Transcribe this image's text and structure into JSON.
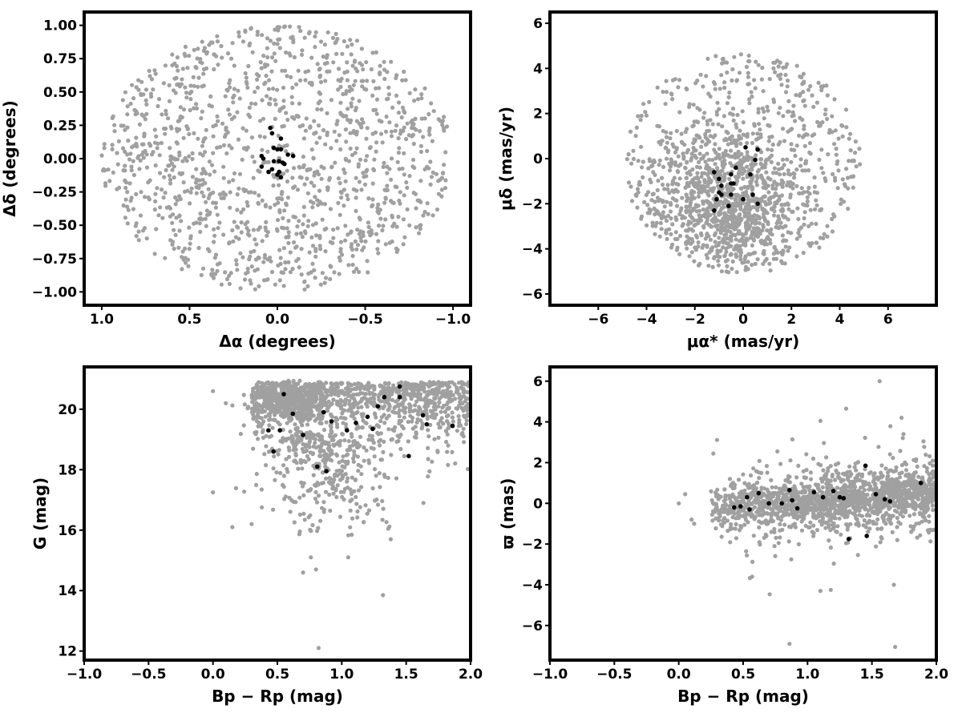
{
  "chart_data": [
    {
      "id": "sky",
      "type": "scatter",
      "title": "",
      "xlabel": "Δα (degrees)",
      "ylabel": "Δδ (degrees)",
      "xlim": [
        1.1,
        -1.1
      ],
      "ylim": [
        -1.1,
        1.1
      ],
      "xticks": [
        1.0,
        0.5,
        0.0,
        -0.5,
        -1.0
      ],
      "xtick_labels": [
        "1.0",
        "0.5",
        "0.0",
        "−0.5",
        "−1.0"
      ],
      "yticks": [
        -1.0,
        -0.75,
        -0.5,
        -0.25,
        0.0,
        0.25,
        0.5,
        0.75,
        1.0
      ],
      "ytick_labels": [
        "−1.00",
        "−0.75",
        "−0.50",
        "−0.25",
        "0.00",
        "0.25",
        "0.50",
        "0.75",
        "1.00"
      ],
      "grid": false,
      "background": {
        "description": "field stars uniformly filling a circle of radius 1 deg (approx. 1300 grey points)",
        "color": "#a0a0a0",
        "count": 1300,
        "shape": "disk",
        "center": [
          0.0,
          0.0
        ],
        "radius": 1.0
      },
      "members": [
        {
          "x": 0.04,
          "y": 0.23
        },
        {
          "x": 0.03,
          "y": 0.19
        },
        {
          "x": -0.02,
          "y": 0.15
        },
        {
          "x": 0.02,
          "y": 0.08
        },
        {
          "x": 0.0,
          "y": 0.07
        },
        {
          "x": -0.02,
          "y": 0.07
        },
        {
          "x": -0.06,
          "y": 0.03
        },
        {
          "x": -0.09,
          "y": 0.02
        },
        {
          "x": 0.09,
          "y": 0.02
        },
        {
          "x": 0.02,
          "y": -0.02
        },
        {
          "x": -0.01,
          "y": -0.02
        },
        {
          "x": -0.03,
          "y": -0.03
        },
        {
          "x": -0.04,
          "y": -0.04
        },
        {
          "x": 0.09,
          "y": -0.06
        },
        {
          "x": 0.03,
          "y": -0.08
        },
        {
          "x": -0.01,
          "y": -0.1
        },
        {
          "x": 0.0,
          "y": -0.12
        },
        {
          "x": -0.02,
          "y": -0.14
        },
        {
          "x": 0.05,
          "y": -0.1
        },
        {
          "x": 0.08,
          "y": 0.0
        }
      ],
      "members_color": "#000000"
    },
    {
      "id": "pm",
      "type": "scatter",
      "title": "",
      "xlabel": "μα* (mas/yr)",
      "ylabel": "μδ (mas/yr)",
      "xlim": [
        -8,
        8
      ],
      "ylim": [
        -6.5,
        6.5
      ],
      "xticks": [
        -6,
        -4,
        -2,
        0,
        2,
        4,
        6
      ],
      "xtick_labels": [
        "−6",
        "−4",
        "−2",
        "0",
        "2",
        "4",
        "6"
      ],
      "yticks": [
        -6,
        -4,
        -2,
        0,
        2,
        4,
        6
      ],
      "ytick_labels": [
        "−6",
        "−4",
        "−2",
        "0",
        "2",
        "4",
        "6"
      ],
      "grid": false,
      "background": {
        "description": "field stars within a circle of radius ~5 mas/yr centred near (0,-0.2), densest around (-0.5,-2)",
        "color": "#a0a0a0",
        "count": 1500,
        "shape": "disk",
        "center": [
          0.0,
          -0.2
        ],
        "radius": 4.9,
        "core_center": [
          -0.5,
          -2.0
        ],
        "core_sigma": [
          1.6,
          1.7
        ]
      },
      "members": [
        {
          "x": 0.1,
          "y": 0.5
        },
        {
          "x": 0.6,
          "y": 0.4
        },
        {
          "x": 0.5,
          "y": -0.05
        },
        {
          "x": -0.3,
          "y": -0.4
        },
        {
          "x": 0.3,
          "y": -0.7
        },
        {
          "x": -1.2,
          "y": -0.6
        },
        {
          "x": -0.5,
          "y": -0.7
        },
        {
          "x": -1.0,
          "y": -0.9
        },
        {
          "x": -0.5,
          "y": -1.1
        },
        {
          "x": -0.4,
          "y": -1.1
        },
        {
          "x": -0.9,
          "y": -1.2
        },
        {
          "x": -1.0,
          "y": -1.5
        },
        {
          "x": -0.9,
          "y": -1.6
        },
        {
          "x": -0.5,
          "y": -1.6
        },
        {
          "x": 0.4,
          "y": -1.6
        },
        {
          "x": -1.1,
          "y": -1.8
        },
        {
          "x": 0.0,
          "y": -1.8
        },
        {
          "x": -0.6,
          "y": -2.1
        },
        {
          "x": 0.6,
          "y": -2.0
        },
        {
          "x": -1.2,
          "y": -2.3
        }
      ],
      "members_color": "#000000"
    },
    {
      "id": "cmd",
      "type": "scatter",
      "title": "",
      "xlabel": "Bp − Rp (mag)",
      "ylabel": "G (mag)",
      "xlim": [
        -1.0,
        2.0
      ],
      "ylim": [
        11.7,
        21.4
      ],
      "xticks": [
        -1.0,
        -0.5,
        0.0,
        0.5,
        1.0,
        1.5,
        2.0
      ],
      "xtick_labels": [
        "−1.0",
        "−0.5",
        "0.0",
        "0.5",
        "1.0",
        "1.5",
        "2.0"
      ],
      "yticks": [
        12,
        14,
        16,
        18,
        20
      ],
      "ytick_labels": [
        "12",
        "14",
        "16",
        "18",
        "20"
      ],
      "grid": false,
      "background": {
        "description": "field-star colour-magnitude distribution, dense at G 19-21 and Bp-Rp 0.3-2.0, branch toward G~16 at Bp-Rp~0.9",
        "color": "#a0a0a0",
        "count": 1700,
        "outliers": [
          {
            "x": 0.0,
            "y": 17.25
          },
          {
            "x": 0.15,
            "y": 16.1
          },
          {
            "x": 0.3,
            "y": 16.2
          },
          {
            "x": 0.7,
            "y": 14.6
          },
          {
            "x": 0.8,
            "y": 14.7
          },
          {
            "x": 1.32,
            "y": 13.85
          },
          {
            "x": 0.82,
            "y": 12.1
          },
          {
            "x": 0.76,
            "y": 15.1
          },
          {
            "x": 1.05,
            "y": 15.1
          },
          {
            "x": 1.38,
            "y": 15.7
          },
          {
            "x": 0.0,
            "y": 20.6
          },
          {
            "x": 0.1,
            "y": 20.2
          }
        ]
      },
      "members": [
        {
          "x": 0.55,
          "y": 20.5
        },
        {
          "x": 1.33,
          "y": 20.4
        },
        {
          "x": 1.45,
          "y": 20.4
        },
        {
          "x": 1.45,
          "y": 20.75
        },
        {
          "x": 0.62,
          "y": 19.85
        },
        {
          "x": 0.86,
          "y": 19.9
        },
        {
          "x": 1.63,
          "y": 19.8
        },
        {
          "x": 1.28,
          "y": 20.1
        },
        {
          "x": 1.2,
          "y": 19.75
        },
        {
          "x": 0.92,
          "y": 19.6
        },
        {
          "x": 1.11,
          "y": 19.55
        },
        {
          "x": 1.66,
          "y": 19.5
        },
        {
          "x": 1.86,
          "y": 19.45
        },
        {
          "x": 1.24,
          "y": 19.35
        },
        {
          "x": 0.43,
          "y": 19.3
        },
        {
          "x": 0.52,
          "y": 19.3
        },
        {
          "x": 1.04,
          "y": 19.3
        },
        {
          "x": 0.7,
          "y": 19.15
        },
        {
          "x": 0.47,
          "y": 18.6
        },
        {
          "x": 1.52,
          "y": 18.45
        },
        {
          "x": 0.81,
          "y": 18.1
        },
        {
          "x": 0.88,
          "y": 17.95
        }
      ],
      "members_color": "#000000"
    },
    {
      "id": "parallax",
      "type": "scatter",
      "title": "",
      "xlabel": "Bp − Rp (mag)",
      "ylabel": "ϖ (mas)",
      "xlim": [
        -1.0,
        2.0
      ],
      "ylim": [
        -7.7,
        6.7
      ],
      "xticks": [
        -1.0,
        -0.5,
        0.0,
        0.5,
        1.0,
        1.5,
        2.0
      ],
      "xtick_labels": [
        "−1.0",
        "−0.5",
        "0.0",
        "0.5",
        "1.0",
        "1.5",
        "2.0"
      ],
      "yticks": [
        -6,
        -4,
        -2,
        0,
        2,
        4,
        6
      ],
      "ytick_labels": [
        "−6",
        "−4",
        "−2",
        "0",
        "2",
        "4",
        "6"
      ],
      "grid": false,
      "background": {
        "description": "field-star parallaxes clustered near 0 mas for Bp-Rp 0.3-2.0 with scatter of about 1-2 mas",
        "color": "#a0a0a0",
        "count": 1700,
        "outliers": [
          {
            "x": 0.0,
            "y": 0.0
          },
          {
            "x": 0.05,
            "y": 0.45
          },
          {
            "x": 0.1,
            "y": -0.8
          },
          {
            "x": 0.12,
            "y": -1.0
          },
          {
            "x": 0.86,
            "y": -6.9
          },
          {
            "x": 1.68,
            "y": -7.05
          },
          {
            "x": 1.56,
            "y": 6.0
          },
          {
            "x": 1.3,
            "y": 4.65
          },
          {
            "x": 1.1,
            "y": 4.05
          },
          {
            "x": 1.73,
            "y": 4.2
          },
          {
            "x": 1.67,
            "y": -4.0
          },
          {
            "x": 1.1,
            "y": -4.3
          },
          {
            "x": 1.18,
            "y": -4.25
          },
          {
            "x": 0.57,
            "y": -3.6
          }
        ]
      },
      "members": [
        {
          "x": 0.43,
          "y": -0.2
        },
        {
          "x": 0.48,
          "y": -0.15
        },
        {
          "x": 0.53,
          "y": 0.3
        },
        {
          "x": 0.55,
          "y": -0.3
        },
        {
          "x": 0.62,
          "y": 0.5
        },
        {
          "x": 0.7,
          "y": 0.0
        },
        {
          "x": 0.8,
          "y": 0.0
        },
        {
          "x": 0.86,
          "y": 0.65
        },
        {
          "x": 0.88,
          "y": 0.15
        },
        {
          "x": 0.92,
          "y": -0.25
        },
        {
          "x": 1.05,
          "y": 0.55
        },
        {
          "x": 1.12,
          "y": 0.3
        },
        {
          "x": 1.2,
          "y": 0.6
        },
        {
          "x": 1.25,
          "y": 0.3
        },
        {
          "x": 1.28,
          "y": 0.25
        },
        {
          "x": 1.32,
          "y": -1.75
        },
        {
          "x": 1.45,
          "y": 1.85
        },
        {
          "x": 1.46,
          "y": -1.6
        },
        {
          "x": 1.53,
          "y": 0.45
        },
        {
          "x": 1.6,
          "y": 0.2
        },
        {
          "x": 1.64,
          "y": 0.1
        },
        {
          "x": 1.88,
          "y": 1.0
        }
      ],
      "members_color": "#000000"
    }
  ]
}
